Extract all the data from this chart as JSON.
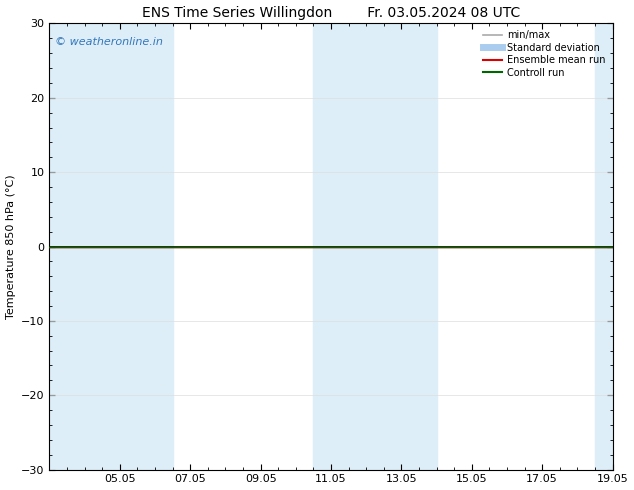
{
  "title_left": "ENS Time Series Willingdon",
  "title_right": "Fr. 03.05.2024 08 UTC",
  "ylabel": "Temperature 850 hPa (°C)",
  "ylim": [
    -30,
    30
  ],
  "yticks": [
    -30,
    -20,
    -10,
    0,
    10,
    20,
    30
  ],
  "xtick_labels": [
    "05.05",
    "07.05",
    "09.05",
    "11.05",
    "13.05",
    "15.05",
    "17.05",
    "19.05"
  ],
  "xtick_positions": [
    2,
    4,
    6,
    8,
    10,
    12,
    14,
    16
  ],
  "xlim": [
    0,
    16
  ],
  "background_color": "#ffffff",
  "plot_bg_color": "#ffffff",
  "shaded_bands": [
    {
      "x_start": 0.0,
      "x_end": 3.0,
      "color": "#ddeeff"
    },
    {
      "x_start": 3.0,
      "x_end": 3.5,
      "color": "#ddeeff"
    },
    {
      "x_start": 7.5,
      "x_end": 8.5,
      "color": "#ddeeff"
    },
    {
      "x_start": 8.5,
      "x_end": 11.0,
      "color": "#ddeeff"
    },
    {
      "x_start": 15.5,
      "x_end": 16.0,
      "color": "#ddeeff"
    }
  ],
  "light_bands": [
    {
      "x_start": 0.0,
      "x_end": 3.5
    },
    {
      "x_start": 7.5,
      "x_end": 11.0
    },
    {
      "x_start": 15.5,
      "x_end": 16.0
    }
  ],
  "zero_line_color": "#000000",
  "ensemble_mean_color": "#dd0000",
  "control_run_color": "#006600",
  "minmax_color": "#aaaaaa",
  "stddev_color": "#aaccee",
  "watermark_text": "© weatheronline.in",
  "watermark_color": "#3377bb",
  "legend_items": [
    {
      "label": "min/max",
      "color": "#aaaaaa",
      "lw": 1.2
    },
    {
      "label": "Standard deviation",
      "color": "#aaccee",
      "lw": 5
    },
    {
      "label": "Ensemble mean run",
      "color": "#dd0000",
      "lw": 1.5
    },
    {
      "label": "Controll run",
      "color": "#006600",
      "lw": 1.5
    }
  ],
  "title_fontsize": 10,
  "label_fontsize": 8,
  "tick_fontsize": 8
}
